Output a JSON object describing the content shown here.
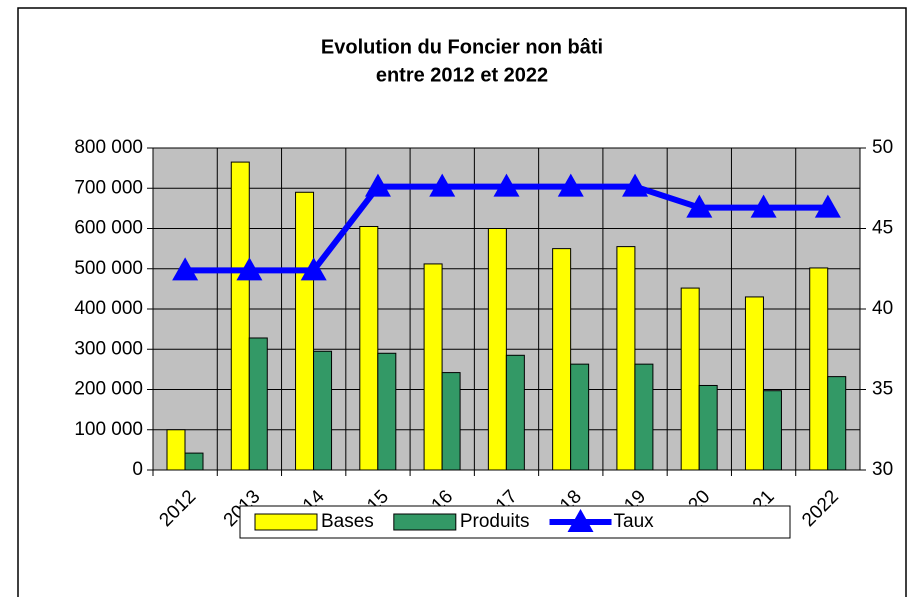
{
  "chart_data": {
    "type": "bar",
    "title": "Evolution  du Foncier non bâti",
    "subtitle": "entre 2012 et 2022",
    "categories": [
      "2012",
      "2013",
      "2014",
      "2015",
      "2016",
      "2017",
      "2018",
      "2019",
      "2020",
      "2021",
      "2022"
    ],
    "series": [
      {
        "name": "Bases",
        "color": "#ffff00",
        "values": [
          100000,
          765000,
          690000,
          605000,
          512000,
          600000,
          550000,
          555000,
          452000,
          430000,
          502000
        ]
      },
      {
        "name": "Produits",
        "color": "#339966",
        "values": [
          42000,
          328000,
          295000,
          290000,
          242000,
          285000,
          263000,
          263000,
          210000,
          197000,
          232000
        ]
      },
      {
        "name": "Taux",
        "color": "#0000ff",
        "type": "line",
        "axis": "y2",
        "values": [
          42.4,
          42.4,
          42.4,
          47.6,
          47.6,
          47.6,
          47.6,
          47.6,
          46.3,
          46.3,
          46.3
        ]
      }
    ],
    "ylim": [
      0,
      800000
    ],
    "yticks": [
      0,
      {
        "value": 100000,
        "label": "100 000"
      },
      {
        "value": 200000,
        "label": "200 000"
      },
      {
        "value": 300000,
        "label": "300 000"
      },
      {
        "value": 400000,
        "label": "400 000"
      },
      {
        "value": 500000,
        "label": "500 000"
      },
      {
        "value": 600000,
        "label": "600 000"
      },
      {
        "value": 700000,
        "label": "700 000"
      },
      {
        "value": 800000,
        "label": "800 000"
      }
    ],
    "y2lim": [
      30,
      50
    ],
    "y2ticks": [
      30,
      35,
      40,
      45,
      50
    ],
    "grid": true,
    "legend": "bottom"
  }
}
